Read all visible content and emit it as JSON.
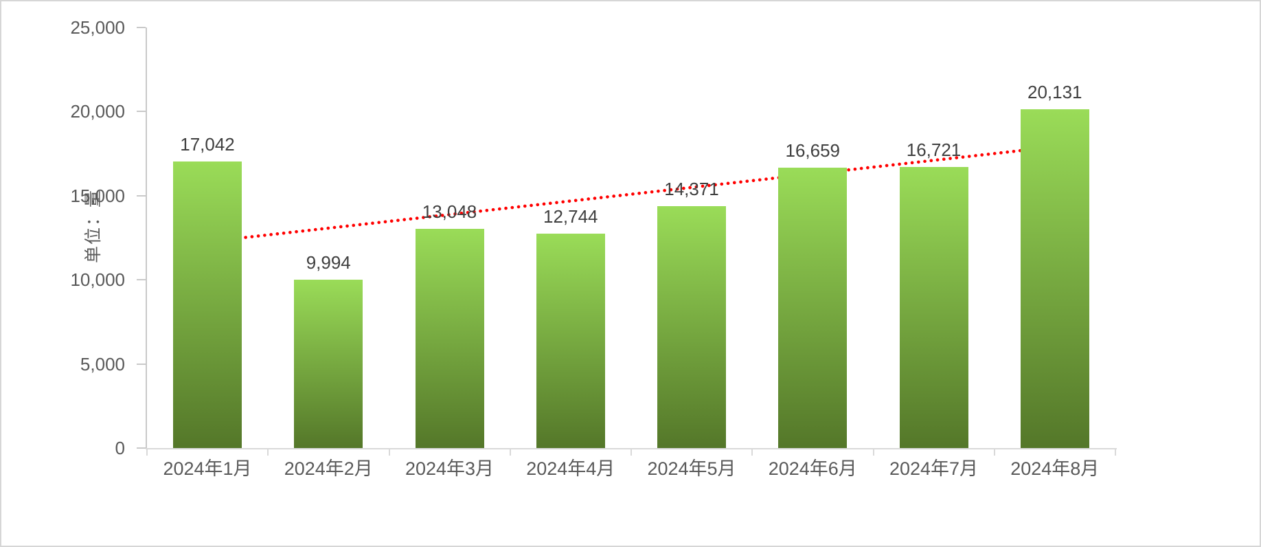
{
  "chart_data": {
    "type": "bar",
    "categories": [
      "2024年1月",
      "2024年2月",
      "2024年3月",
      "2024年4月",
      "2024年5月",
      "2024年6月",
      "2024年7月",
      "2024年8月"
    ],
    "values": [
      17042,
      9994,
      13048,
      12744,
      14371,
      16659,
      16721,
      20131
    ],
    "value_labels": [
      "17,042",
      "9,994",
      "13,048",
      "12,744",
      "14,371",
      "16,659",
      "16,721",
      "20,131"
    ],
    "title": "",
    "xlabel": "",
    "ylabel": "单位：量",
    "ylim": [
      0,
      25000
    ],
    "ytick_interval": 5000,
    "ytick_labels": [
      "0",
      "5,000",
      "10,000",
      "15,000",
      "20,000",
      "25,000"
    ],
    "grid": false,
    "legend": "none",
    "trendline": {
      "kind": "linear",
      "style": "dotted",
      "color": "#ff0000",
      "span": "first-to-last-category"
    }
  },
  "style_colors": {
    "bar_gradient_top": "#9adc58",
    "bar_gradient_bottom": "#547729",
    "axis_line": "#c9c9c9",
    "x_axis_line": "#d9d9d9",
    "tick_text": "#595959",
    "data_label_text": "#3f3f3f",
    "background": "#ffffff",
    "frame_border": "#d6d6d6"
  }
}
